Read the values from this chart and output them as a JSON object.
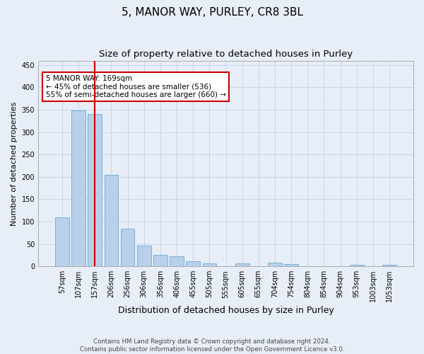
{
  "title": "5, MANOR WAY, PURLEY, CR8 3BL",
  "subtitle": "Size of property relative to detached houses in Purley",
  "xlabel": "Distribution of detached houses by size in Purley",
  "ylabel": "Number of detached properties",
  "bar_labels": [
    "57sqm",
    "107sqm",
    "157sqm",
    "206sqm",
    "256sqm",
    "306sqm",
    "356sqm",
    "406sqm",
    "455sqm",
    "505sqm",
    "555sqm",
    "605sqm",
    "655sqm",
    "704sqm",
    "754sqm",
    "804sqm",
    "854sqm",
    "904sqm",
    "953sqm",
    "1003sqm",
    "1053sqm"
  ],
  "bar_values": [
    110,
    348,
    341,
    204,
    84,
    47,
    25,
    23,
    12,
    6,
    0,
    7,
    0,
    8,
    5,
    0,
    0,
    0,
    4,
    0,
    4
  ],
  "bar_color": "#b8d0ea",
  "bar_edge_color": "#6aaad4",
  "grid_color": "#c8d4e8",
  "background_color": "#e8eef8",
  "vline_x": 2,
  "vline_color": "#cc0000",
  "annotation_text": "5 MANOR WAY: 169sqm\n← 45% of detached houses are smaller (536)\n55% of semi-detached houses are larger (660) →",
  "annotation_box_color": "#ffffff",
  "annotation_box_edge": "#cc0000",
  "ylim": [
    0,
    460
  ],
  "yticks": [
    0,
    50,
    100,
    150,
    200,
    250,
    300,
    350,
    400,
    450
  ],
  "footer_text": "Contains HM Land Registry data © Crown copyright and database right 2024.\nContains public sector information licensed under the Open Government Licence v3.0.",
  "title_fontsize": 11,
  "subtitle_fontsize": 9.5,
  "xlabel_fontsize": 9,
  "ylabel_fontsize": 8,
  "tick_fontsize": 7
}
